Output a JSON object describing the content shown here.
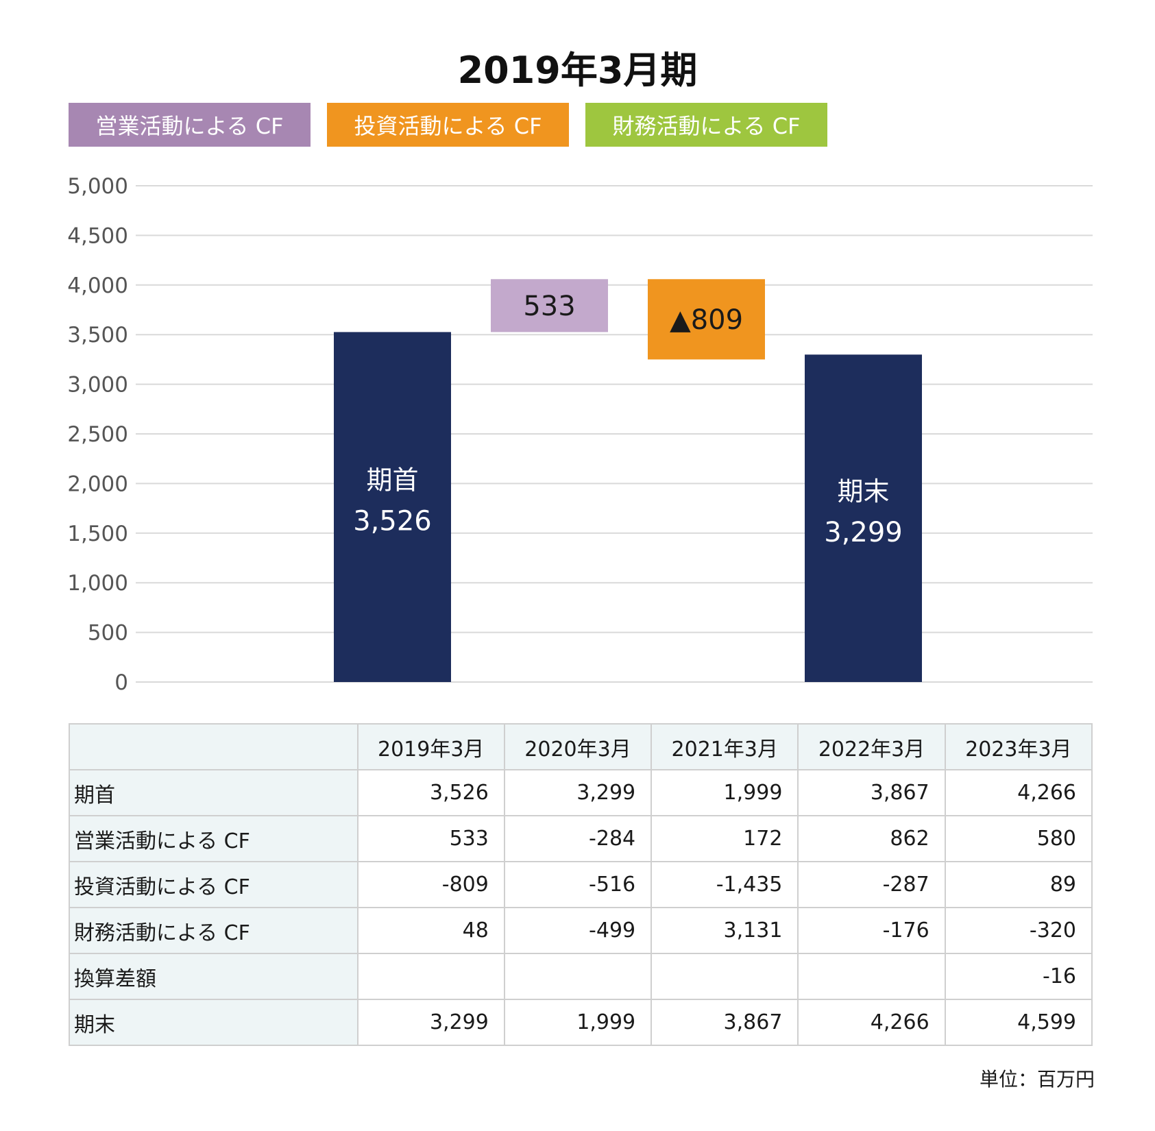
{
  "chart_data": {
    "type": "waterfall",
    "title": "2019年3月期",
    "legend": [
      {
        "label": "営業活動による CF",
        "color": "#a787b2"
      },
      {
        "label": "投資活動による CF",
        "color": "#f0951f"
      },
      {
        "label": "財務活動による CF",
        "color": "#9ec63f"
      }
    ],
    "ylim": [
      0,
      5000
    ],
    "yticks": [
      "0",
      "500",
      "1,000",
      "1,500",
      "2,000",
      "2,500",
      "3,000",
      "3,500",
      "4,000",
      "4,500",
      "5,000"
    ],
    "ytick_values": [
      0,
      500,
      1000,
      1500,
      2000,
      2500,
      3000,
      3500,
      4000,
      4500,
      5000
    ],
    "grid": true,
    "bars": [
      {
        "label": "期首",
        "value_label": "3,526",
        "base": 0,
        "top": 3526,
        "color": "#1d2d5c",
        "text_color": "#ffffff"
      },
      {
        "label": "",
        "value_label": "533",
        "base": 3526,
        "top": 4059,
        "color": "#c3a9cc",
        "text_color": "#1a1a1a"
      },
      {
        "label": "",
        "value_label": "▲809",
        "base": 3250,
        "top": 4059,
        "color": "#f0951f",
        "text_color": "#1a1a1a"
      },
      {
        "label": "期末",
        "value_label": "3,299",
        "base": 0,
        "top": 3299,
        "color": "#1d2d5c",
        "text_color": "#ffffff"
      }
    ]
  },
  "table": {
    "columns": [
      "",
      "2019年3月",
      "2020年3月",
      "2021年3月",
      "2022年3月",
      "2023年3月"
    ],
    "rows": [
      {
        "label": "期首",
        "values": [
          "3,526",
          "3,299",
          "1,999",
          "3,867",
          "4,266"
        ]
      },
      {
        "label": "営業活動による CF",
        "values": [
          "533",
          "-284",
          "172",
          "862",
          "580"
        ]
      },
      {
        "label": "投資活動による CF",
        "values": [
          "-809",
          "-516",
          "-1,435",
          "-287",
          "89"
        ]
      },
      {
        "label": "財務活動による CF",
        "values": [
          "48",
          "-499",
          "3,131",
          "-176",
          "-320"
        ]
      },
      {
        "label": "換算差額",
        "values": [
          "",
          "",
          "",
          "",
          "-16"
        ]
      },
      {
        "label": "期末",
        "values": [
          "3,299",
          "1,999",
          "3,867",
          "4,266",
          "4,599"
        ]
      }
    ]
  },
  "unit_note": "単位：百万円"
}
